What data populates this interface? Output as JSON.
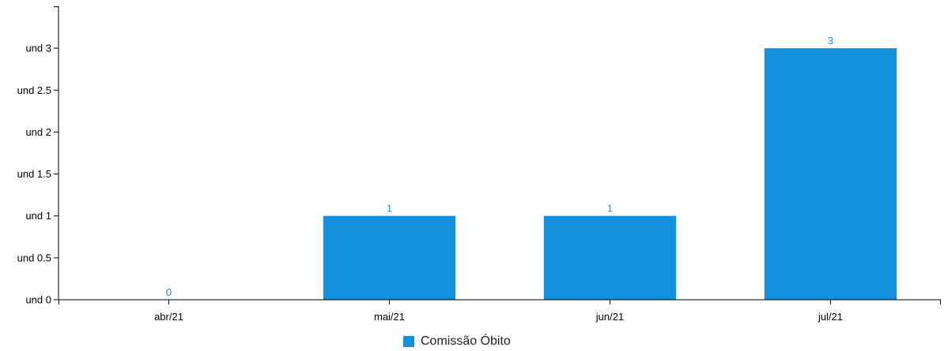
{
  "chart_data": {
    "type": "bar",
    "categories": [
      "abr/21",
      "mai/21",
      "jun/21",
      "jul/21"
    ],
    "series": [
      {
        "name": "Comissão Óbito",
        "values": [
          0,
          1,
          1,
          3
        ],
        "color": "#1490dd"
      }
    ],
    "y_ticks": [
      "und 0",
      "und 0.5",
      "und 1",
      "und 1.5",
      "und 2",
      "und 2.5",
      "und 3"
    ],
    "y_tick_values": [
      0,
      0.5,
      1,
      1.5,
      2,
      2.5,
      3
    ],
    "ylim": [
      0,
      3.5
    ],
    "data_labels": [
      "0",
      "1",
      "1",
      "3"
    ],
    "grid": false,
    "legend_position": "bottom-center",
    "label_color": "#1490dd"
  }
}
